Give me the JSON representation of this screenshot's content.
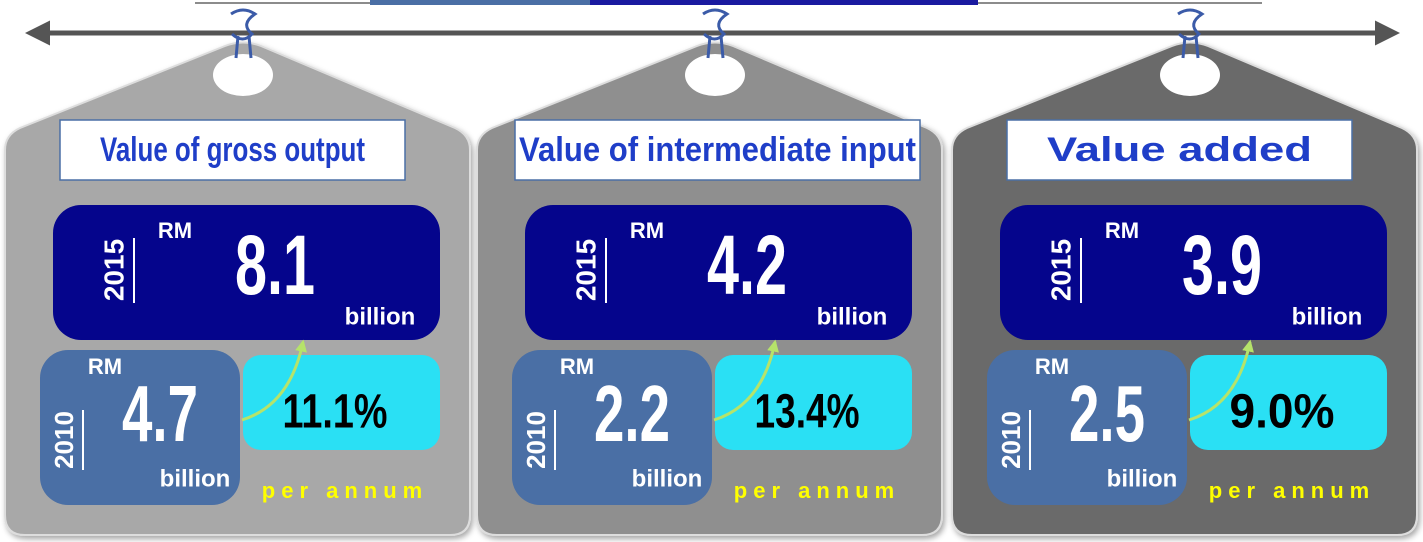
{
  "cards": [
    {
      "title": "Value of gross output",
      "current": {
        "year": "2015",
        "currency": "RM",
        "value": "8.1",
        "unit": "billion"
      },
      "previous": {
        "year": "2010",
        "currency": "RM",
        "value": "4.7",
        "unit": "billion"
      },
      "growth": "11.1%",
      "growth_note": "per annum"
    },
    {
      "title": "Value of intermediate input",
      "current": {
        "year": "2015",
        "currency": "RM",
        "value": "4.2",
        "unit": "billion"
      },
      "previous": {
        "year": "2010",
        "currency": "RM",
        "value": "2.2",
        "unit": "billion"
      },
      "growth": "13.4%",
      "growth_note": "per annum"
    },
    {
      "title": "Value added",
      "current": {
        "year": "2015",
        "currency": "RM",
        "value": "3.9",
        "unit": "billion"
      },
      "previous": {
        "year": "2010",
        "currency": "RM",
        "value": "2.5",
        "unit": "billion"
      },
      "growth": "9.0%",
      "growth_note": "per annum"
    }
  ]
}
